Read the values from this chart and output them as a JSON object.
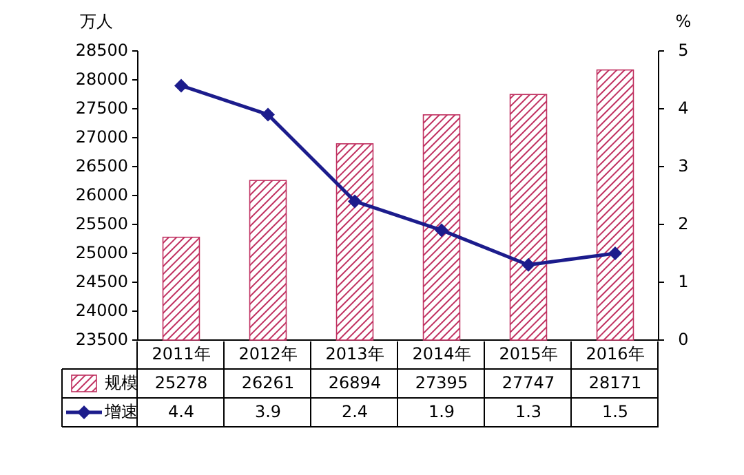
{
  "chart_data": {
    "type": "bar",
    "categories": [
      "2011年",
      "2012年",
      "2013年",
      "2014年",
      "2015年",
      "2016年"
    ],
    "series": [
      {
        "name": "规模",
        "color": "#c03060",
        "values": [
          25278,
          26261,
          26894,
          27395,
          27747,
          28171
        ]
      },
      {
        "name": "增速",
        "type": "line",
        "axis": "y2",
        "color": "#1c1c8c",
        "marker": "diamond",
        "values": [
          4.4,
          3.9,
          2.4,
          1.9,
          1.3,
          1.5
        ]
      }
    ],
    "ylabel": "万人",
    "y2label": "%",
    "ylim": [
      23500,
      28500
    ],
    "yticks": [
      23500,
      24000,
      24500,
      25000,
      25500,
      26000,
      26500,
      27000,
      27500,
      28000,
      28500
    ],
    "y2lim": [
      0,
      5
    ],
    "y2ticks": [
      0,
      1,
      2,
      3,
      4,
      5
    ],
    "data_labels": true,
    "legend": "bottom",
    "grid": false
  }
}
